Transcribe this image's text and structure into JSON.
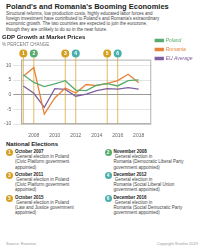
{
  "chart_data": {
    "type": "line",
    "title": "Poland's and Romania's Booming Economies",
    "subtitle": "Structural reforms, low production costs, highly educated labor forces and\nforeign investment have contributed to Poland's and Romania's extraordinary\neconomic growth. The two countries are expected to join the eurozone,\nthough they are unlikely to do so in the near future.",
    "chart_title": "GDP Growth at Market Prices",
    "ylabel": "% PERCENT CHANGE",
    "x": [
      2007,
      2008,
      2009,
      2010,
      2011,
      2012,
      2013,
      2014,
      2015,
      2016,
      2017,
      2018
    ],
    "series": [
      {
        "name": "Poland",
        "color": "#5aab6e",
        "values": [
          6.8,
          4.2,
          2.8,
          3.7,
          4.8,
          1.6,
          1.4,
          3.3,
          3.8,
          3.0,
          4.8,
          5.1
        ]
      },
      {
        "name": "Romania",
        "color": "#e8823a",
        "values": [
          6.3,
          9.3,
          -6.6,
          -1.1,
          2.3,
          0.6,
          3.5,
          3.1,
          3.9,
          4.8,
          7.0,
          4.1
        ]
      },
      {
        "name": "EU Average",
        "color": "#8060a0",
        "values": [
          3.0,
          0.5,
          -4.3,
          2.1,
          1.8,
          -0.5,
          0.2,
          1.4,
          2.1,
          1.9,
          2.4,
          1.9
        ]
      }
    ],
    "xlim": [
      2006.8,
      2019.2
    ],
    "xticks": [
      2008,
      2010,
      2012,
      2014,
      2016,
      2018
    ],
    "ylim": [
      -10,
      12
    ],
    "yticks": [
      -10,
      -5,
      0,
      5,
      10
    ],
    "grid": "y",
    "legend": "right",
    "annotation_line_color": "#d4a020",
    "annotations": [
      {
        "x": 2007,
        "label": "1",
        "color": "#d4a020"
      },
      {
        "x": 2008,
        "label": "2",
        "color": "#5aab6e"
      },
      {
        "x": 2011,
        "label": "3",
        "color": "#d4a020"
      },
      {
        "x": 2012,
        "label": "4",
        "color": "#4aaeae"
      },
      {
        "x": 2015,
        "label": "5",
        "color": "#d4a020"
      },
      {
        "x": 2016,
        "label": "6",
        "color": "#4aaeae"
      }
    ],
    "notes_title": "National Elections",
    "notes": [
      {
        "label": "1",
        "color": "#d4a020",
        "date": "October 2007",
        "text": " General election in Poland\n(Civic Platform government\nappointed)"
      },
      {
        "label": "2",
        "color": "#5aab6e",
        "date": "November 2008",
        "text": " General election in\nRomania (Democratic Liberal Party\ngovernment appointed)"
      },
      {
        "label": "3",
        "color": "#d4a020",
        "date": "October 2011",
        "text": " General election in Poland\n(Civic Platform government\nappointed)"
      },
      {
        "label": "4",
        "color": "#4aaeae",
        "date": "December 2012",
        "text": " General election in\nRomania (Social Liberal Union\ngovernment appointed)"
      },
      {
        "label": "5",
        "color": "#d4a020",
        "date": "October 2015",
        "text": " General election in Poland\n(Law and Justice government\nappointed)"
      },
      {
        "label": "6",
        "color": "#4aaeae",
        "date": "December 2016",
        "text": " General election in\nRomania (Social Democratic Party\ngovernment appointed)"
      }
    ],
    "source": "Source: Eurostat",
    "copyright": "Copyright Stratfor 2019"
  }
}
